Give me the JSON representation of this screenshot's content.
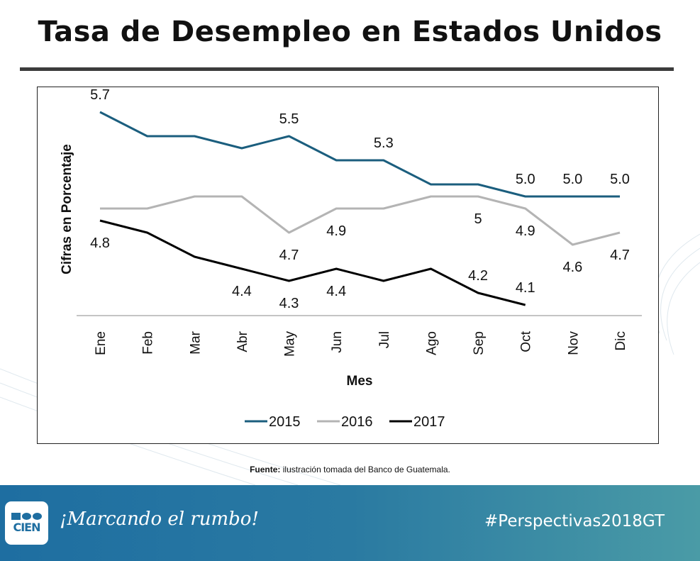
{
  "title": "Tasa de Desempleo en Estados Unidos",
  "source": {
    "label": "Fuente:",
    "text": " ilustración tomada del Banco de Guatemala."
  },
  "footer": {
    "logo_text": "CIEN",
    "slogan": "¡Marcando el rumbo!",
    "hashtag": "#Perspectivas2018GT"
  },
  "colors": {
    "s2015": "#1b5e7e",
    "s2016": "#b4b4b4",
    "s2017": "#000000"
  },
  "chart_data": {
    "type": "line",
    "title": "Tasa de Desempleo en Estados Unidos",
    "xlabel": "Mes",
    "ylabel": "Cifras en Porcentaje",
    "ylim": [
      4.0,
      5.9
    ],
    "grid": false,
    "legend_position": "bottom",
    "categories": [
      "Ene",
      "Feb",
      "Mar",
      "Abr",
      "May",
      "Jun",
      "Jul",
      "Ago",
      "Sep",
      "Oct",
      "Nov",
      "Dic"
    ],
    "series": [
      {
        "name": "2015",
        "color": "#1b5e7e",
        "values": [
          5.7,
          5.5,
          5.5,
          5.4,
          5.5,
          5.3,
          5.3,
          5.1,
          5.1,
          5.0,
          5.0,
          5.0
        ]
      },
      {
        "name": "2016",
        "color": "#b4b4b4",
        "values": [
          4.9,
          4.9,
          5.0,
          5.0,
          4.7,
          4.9,
          4.9,
          5.0,
          5.0,
          4.9,
          4.6,
          4.7
        ]
      },
      {
        "name": "2017",
        "color": "#000000",
        "values": [
          4.8,
          4.7,
          4.5,
          4.4,
          4.3,
          4.4,
          4.3,
          4.4,
          4.2,
          4.1,
          null,
          null
        ]
      }
    ],
    "data_labels": [
      {
        "series": 0,
        "index": 0,
        "text": "5.7",
        "pos": "above"
      },
      {
        "series": 0,
        "index": 4,
        "text": "5.5",
        "pos": "above"
      },
      {
        "series": 0,
        "index": 6,
        "text": "5.3",
        "pos": "above"
      },
      {
        "series": 0,
        "index": 9,
        "text": "5.0",
        "pos": "above"
      },
      {
        "series": 0,
        "index": 10,
        "text": "5.0",
        "pos": "above"
      },
      {
        "series": 0,
        "index": 11,
        "text": "5.0",
        "pos": "above"
      },
      {
        "series": 1,
        "index": 4,
        "text": "4.7",
        "pos": "below"
      },
      {
        "series": 1,
        "index": 5,
        "text": "4.9",
        "pos": "below"
      },
      {
        "series": 1,
        "index": 8,
        "text": "5",
        "pos": "below"
      },
      {
        "series": 1,
        "index": 9,
        "text": "4.9",
        "pos": "below"
      },
      {
        "series": 1,
        "index": 10,
        "text": "4.6",
        "pos": "below"
      },
      {
        "series": 1,
        "index": 11,
        "text": "4.7",
        "pos": "below"
      },
      {
        "series": 2,
        "index": 0,
        "text": "4.8",
        "pos": "below"
      },
      {
        "series": 2,
        "index": 3,
        "text": "4.4",
        "pos": "below"
      },
      {
        "series": 2,
        "index": 4,
        "text": "4.3",
        "pos": "below"
      },
      {
        "series": 2,
        "index": 5,
        "text": "4.4",
        "pos": "below"
      },
      {
        "series": 2,
        "index": 8,
        "text": "4.2",
        "pos": "above"
      },
      {
        "series": 2,
        "index": 9,
        "text": "4.1",
        "pos": "above"
      }
    ]
  }
}
